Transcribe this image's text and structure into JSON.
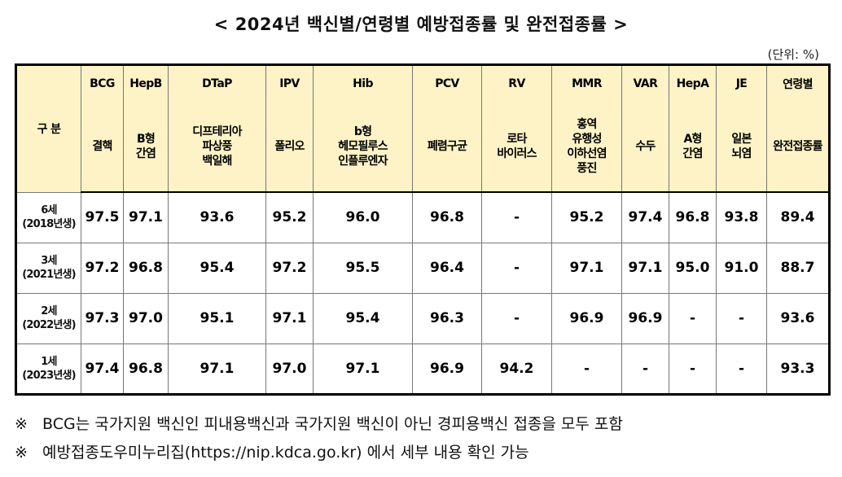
{
  "title": "< 2024년 백신별/연령별 예방접종률 및 완전접종률 >",
  "unit": "(단위: %)",
  "table": {
    "gubun": "구 분",
    "codes": [
      "BCG",
      "HepB",
      "DTaP",
      "IPV",
      "Hib",
      "PCV",
      "RV",
      "MMR",
      "VAR",
      "HepA",
      "JE",
      "연령별"
    ],
    "names": [
      "결핵",
      "B형\n간염",
      "디프테리아\n파상풍\n백일해",
      "폴리오",
      "b형\n헤모필루스\n인플루엔자",
      "폐렴구균",
      "로타\n바이러스",
      "홍역\n유행성\n이하선염\n풍진",
      "수두",
      "A형\n간염",
      "일본\n뇌염",
      "완전접종률"
    ],
    "rows": [
      {
        "age": "6세\n(2018년생)",
        "values": [
          "97.5",
          "97.1",
          "93.6",
          "95.2",
          "96.0",
          "96.8",
          "-",
          "95.2",
          "97.4",
          "96.8",
          "93.8",
          "89.4"
        ]
      },
      {
        "age": "3세\n(2021년생)",
        "values": [
          "97.2",
          "96.8",
          "95.4",
          "97.2",
          "95.5",
          "96.4",
          "-",
          "97.1",
          "97.1",
          "95.0",
          "91.0",
          "88.7"
        ]
      },
      {
        "age": "2세\n(2022년생)",
        "values": [
          "97.3",
          "97.0",
          "95.1",
          "97.1",
          "95.4",
          "96.3",
          "-",
          "96.9",
          "96.9",
          "-",
          "-",
          "93.6"
        ]
      },
      {
        "age": "1세\n(2023년생)",
        "values": [
          "97.4",
          "96.8",
          "97.1",
          "97.0",
          "97.1",
          "96.9",
          "94.2",
          "-",
          "-",
          "-",
          "-",
          "93.3"
        ]
      }
    ]
  },
  "notes": [
    {
      "mark": "※",
      "text": "BCG는 국가지원 백신인 피내용백신과 국가지원 백신이 아닌 경피용백신 접종을 모두 포함"
    },
    {
      "mark": "※",
      "text": "예방접종도우미누리집(https://nip.kdca.go.kr) 에서 세부 내용 확인 가능"
    }
  ]
}
